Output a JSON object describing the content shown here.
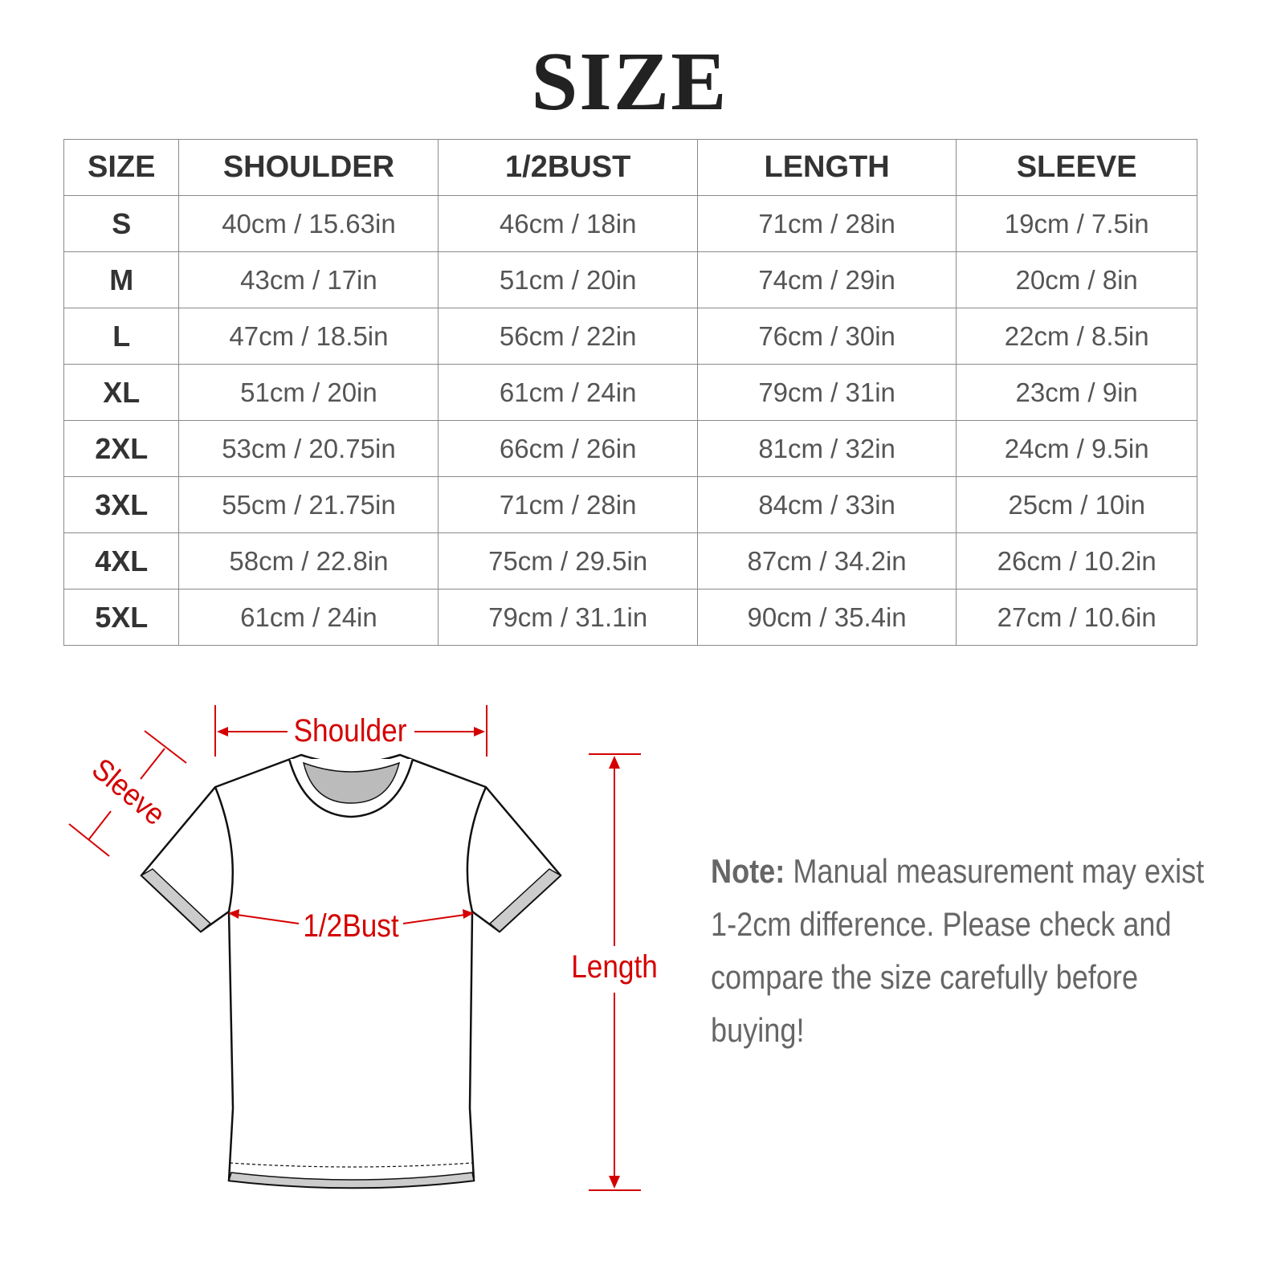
{
  "title": "SIZE",
  "table": {
    "headers": [
      "SIZE",
      "SHOULDER",
      "1/2BUST",
      "LENGTH",
      "SLEEVE"
    ],
    "rows": [
      [
        "S",
        "40cm / 15.63in",
        "46cm / 18in",
        "71cm / 28in",
        "19cm / 7.5in"
      ],
      [
        "M",
        "43cm / 17in",
        "51cm / 20in",
        "74cm / 29in",
        "20cm / 8in"
      ],
      [
        "L",
        "47cm / 18.5in",
        "56cm / 22in",
        "76cm / 30in",
        "22cm / 8.5in"
      ],
      [
        "XL",
        "51cm / 20in",
        "61cm / 24in",
        "79cm / 31in",
        "23cm / 9in"
      ],
      [
        "2XL",
        "53cm / 20.75in",
        "66cm / 26in",
        "81cm / 32in",
        "24cm / 9.5in"
      ],
      [
        "3XL",
        "55cm / 21.75in",
        "71cm / 28in",
        "84cm / 33in",
        "25cm / 10in"
      ],
      [
        "4XL",
        "58cm / 22.8in",
        "75cm / 29.5in",
        "87cm / 34.2in",
        "26cm / 10.2in"
      ],
      [
        "5XL",
        "61cm / 24in",
        "79cm / 31.1in",
        "90cm / 35.4in",
        "27cm / 10.6in"
      ]
    ]
  },
  "diagram": {
    "shoulder": "Shoulder",
    "sleeve": "Sleeve",
    "bust": "1/2Bust",
    "length": "Length",
    "accent_color": "#d40000"
  },
  "note": {
    "label": "Note:",
    "text": " Manual measurement may exist 1-2cm difference. Please check and compare the size carefully before buying!"
  }
}
